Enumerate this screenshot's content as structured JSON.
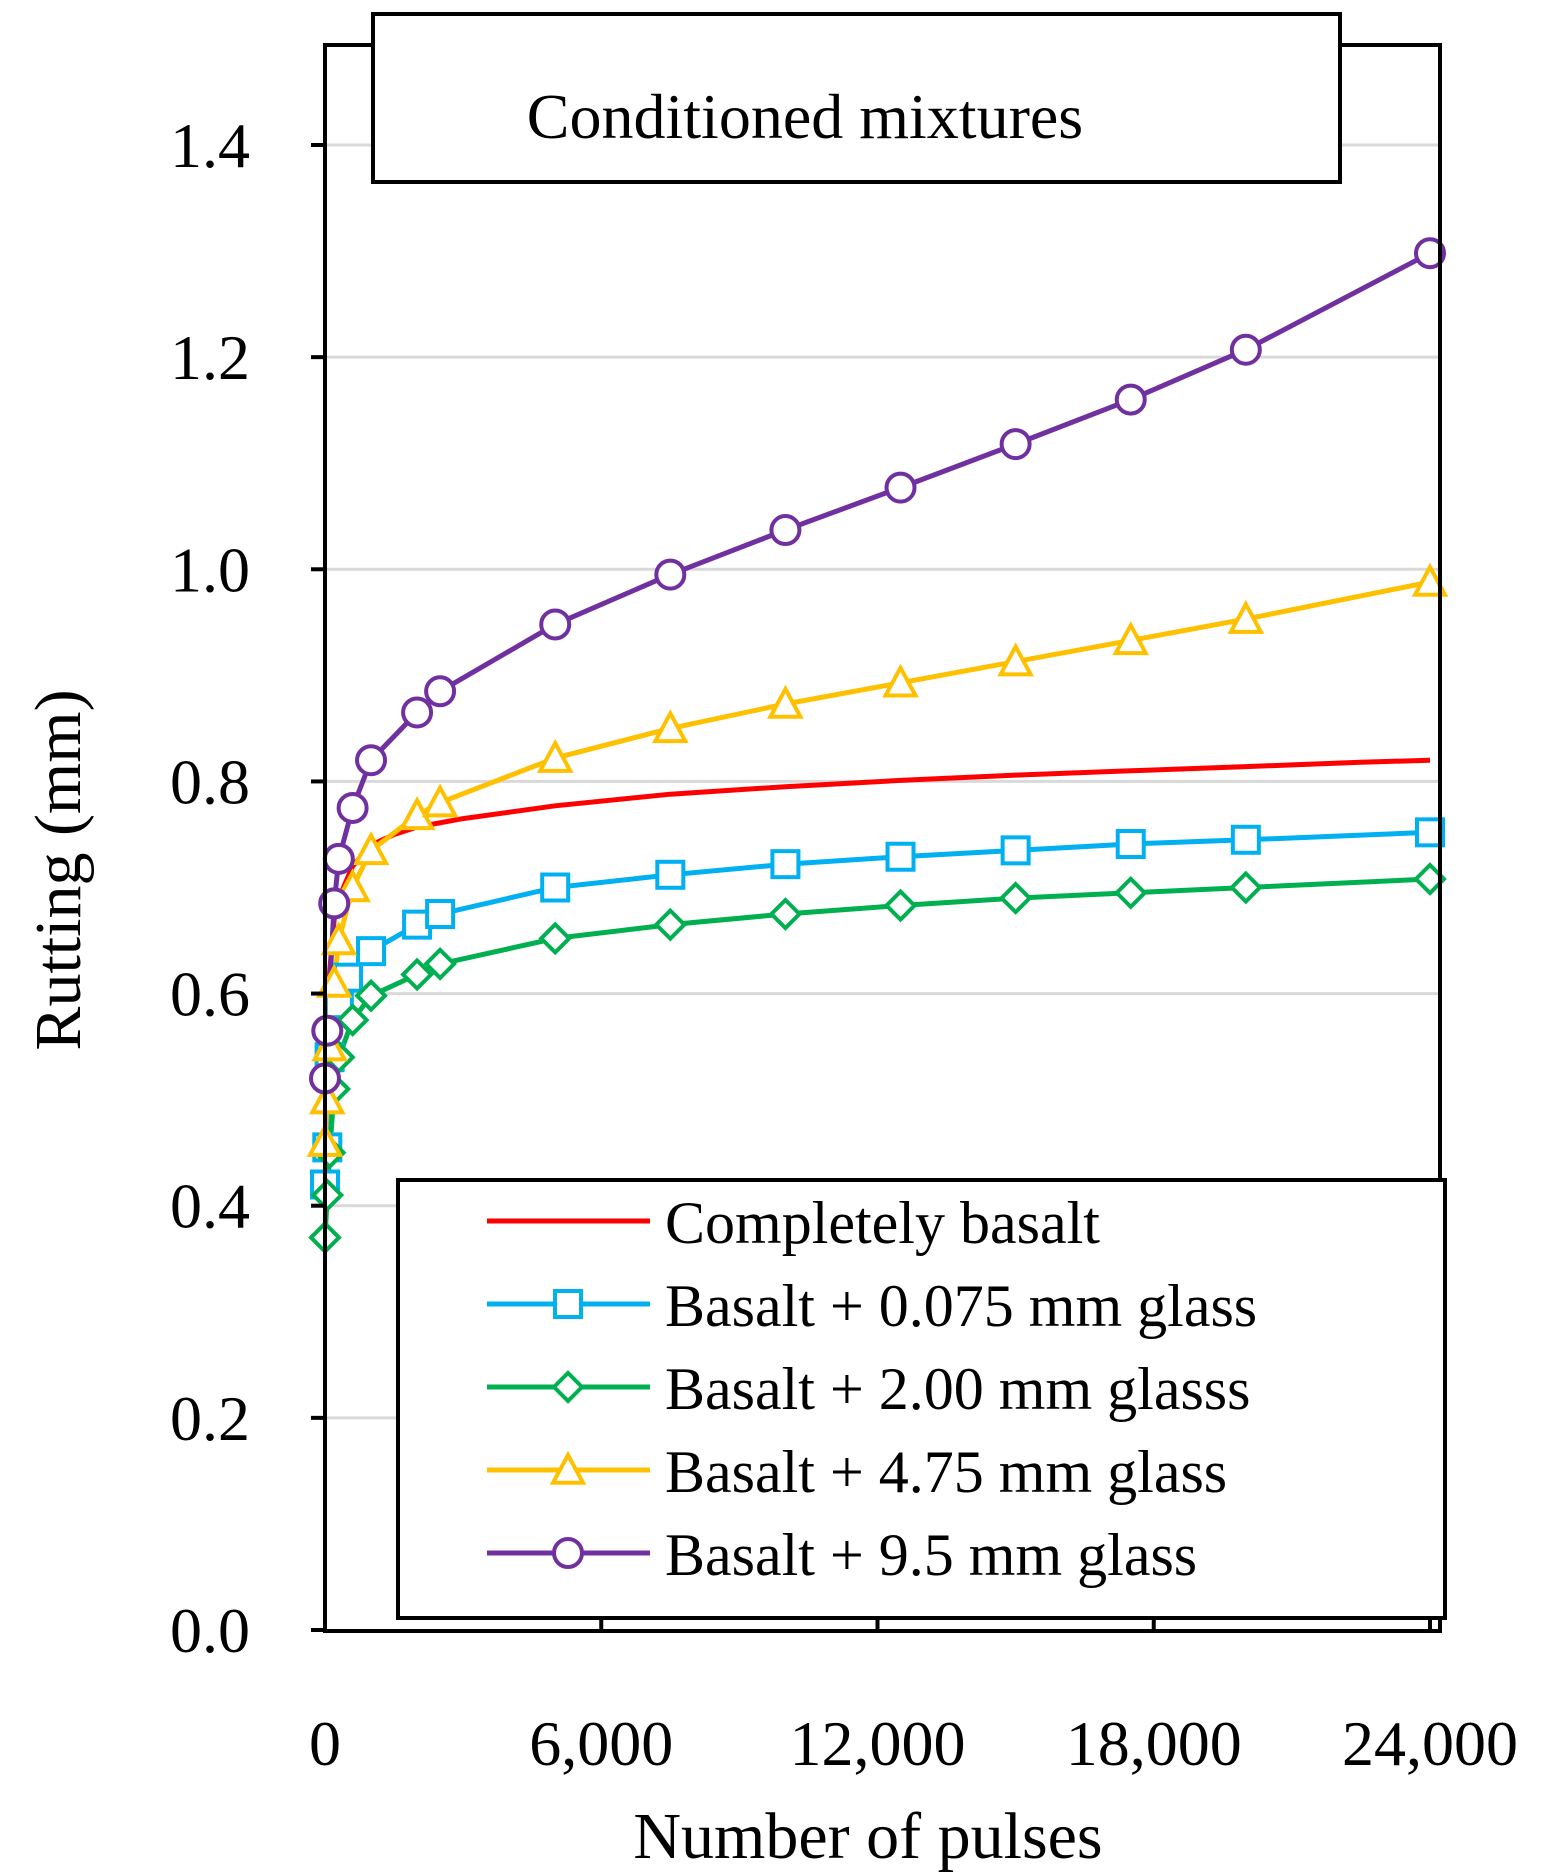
{
  "chart_data": {
    "type": "line",
    "title": "Conditioned mixtures",
    "xlabel": "Number of pulses",
    "ylabel": "Rutting (mm)",
    "xlim": [
      0,
      24000
    ],
    "ylim": [
      0,
      1.5
    ],
    "xticks": [
      0,
      6000,
      12000,
      18000,
      24000
    ],
    "xtick_labels": [
      "0",
      "6,000",
      "12,000",
      "18,000",
      "24,000"
    ],
    "yticks": [
      0.0,
      0.2,
      0.4,
      0.6,
      0.8,
      1.0,
      1.2,
      1.4
    ],
    "ytick_labels": [
      "0.0",
      "0.2",
      "0.4",
      "0.6",
      "0.8",
      "1.0",
      "1.2",
      "1.4"
    ],
    "grid": "horizontal",
    "legend_position": "bottom-right",
    "series": [
      {
        "name": "Completely basalt",
        "color": "#ff0000",
        "marker": "none",
        "x": [
          0,
          50,
          100,
          200,
          400,
          600,
          1000,
          1500,
          2000,
          3000,
          5000,
          7500,
          10000,
          12500,
          15000,
          17500,
          20000,
          22500,
          24000
        ],
        "y": [
          0.4,
          0.55,
          0.62,
          0.67,
          0.7,
          0.72,
          0.74,
          0.75,
          0.757,
          0.765,
          0.777,
          0.788,
          0.795,
          0.801,
          0.806,
          0.81,
          0.814,
          0.818,
          0.82
        ]
      },
      {
        "name": "Basalt + 0.075 mm glass",
        "color": "#00b0f0",
        "marker": "square",
        "x": [
          0,
          50,
          100,
          300,
          500,
          1000,
          2000,
          2500,
          5000,
          7500,
          10000,
          12500,
          15000,
          17500,
          20000,
          24000
        ],
        "y": [
          0.42,
          0.455,
          0.54,
          0.59,
          0.615,
          0.64,
          0.665,
          0.675,
          0.7,
          0.712,
          0.722,
          0.729,
          0.735,
          0.741,
          0.745,
          0.752
        ]
      },
      {
        "name": "Basalt + 2.00 mm glasss",
        "color": "#00b050",
        "marker": "diamond",
        "x": [
          0,
          50,
          100,
          200,
          300,
          600,
          1000,
          2000,
          2500,
          5000,
          7500,
          10000,
          12500,
          15000,
          17500,
          20000,
          24000
        ],
        "y": [
          0.37,
          0.41,
          0.45,
          0.51,
          0.54,
          0.575,
          0.598,
          0.618,
          0.628,
          0.652,
          0.665,
          0.675,
          0.683,
          0.69,
          0.695,
          0.7,
          0.708
        ]
      },
      {
        "name": "Basalt + 4.75 mm glass",
        "color": "#ffc000",
        "marker": "triangle",
        "x": [
          0,
          50,
          100,
          200,
          300,
          600,
          1000,
          2000,
          2500,
          5000,
          7500,
          10000,
          12500,
          15000,
          17500,
          20000,
          24000
        ],
        "y": [
          0.46,
          0.5,
          0.55,
          0.61,
          0.65,
          0.7,
          0.735,
          0.768,
          0.78,
          0.822,
          0.85,
          0.873,
          0.893,
          0.913,
          0.933,
          0.953,
          0.988
        ]
      },
      {
        "name": "Basalt + 9.5 mm glass",
        "color": "#7030a0",
        "marker": "circle",
        "x": [
          0,
          50,
          200,
          300,
          600,
          1000,
          2000,
          2500,
          5000,
          7500,
          10000,
          12500,
          15000,
          17500,
          20000,
          24000
        ],
        "y": [
          0.52,
          0.565,
          0.685,
          0.727,
          0.775,
          0.82,
          0.865,
          0.885,
          0.948,
          0.995,
          1.037,
          1.077,
          1.118,
          1.16,
          1.207,
          1.298
        ]
      }
    ]
  }
}
